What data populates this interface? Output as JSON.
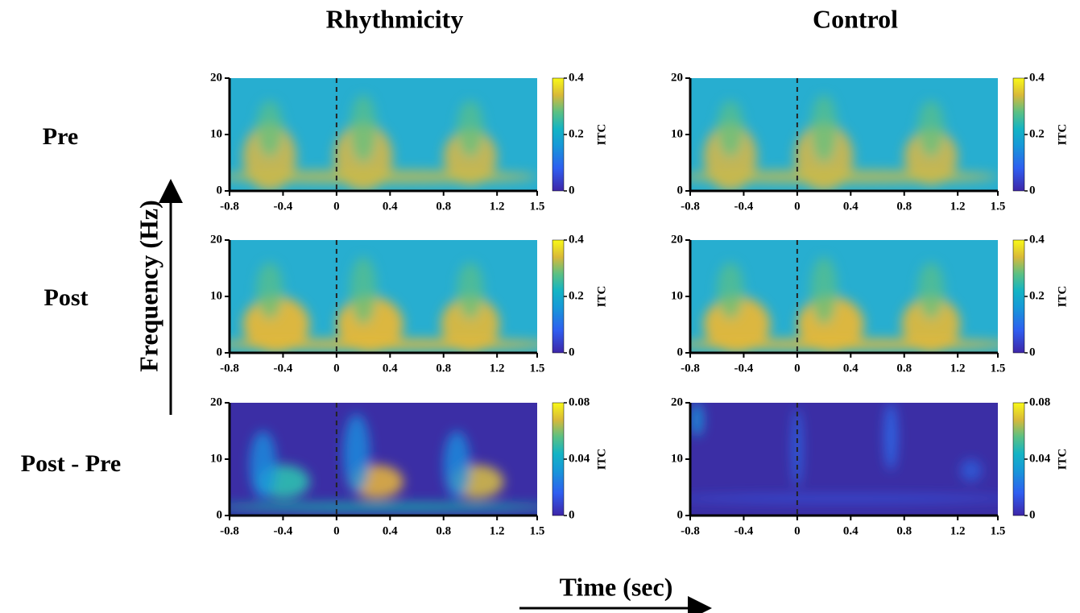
{
  "column_titles": [
    "Rhythmicity",
    "Control"
  ],
  "row_labels": [
    "Pre",
    "Post",
    "Post - Pre"
  ],
  "y_axis_label": "Frequency (Hz)",
  "x_axis_label": "Time (sec)",
  "chart_data": [
    {
      "type": "heatmap",
      "variant": "pre-rhythm",
      "xlim": [
        -0.8,
        1.5
      ],
      "xticks": [
        -0.8,
        -0.4,
        0,
        0.4,
        0.8,
        1.2,
        1.5
      ],
      "ylim": [
        0,
        20
      ],
      "yticks": [
        0,
        10,
        20
      ],
      "clim": [
        0,
        0.4
      ],
      "cticks": [
        0,
        0.2,
        0.4
      ],
      "colorbar_label": "ITC",
      "vline": 0
    },
    {
      "type": "heatmap",
      "variant": "pre-control",
      "xlim": [
        -0.8,
        1.5
      ],
      "xticks": [
        -0.8,
        -0.4,
        0,
        0.4,
        0.8,
        1.2,
        1.5
      ],
      "ylim": [
        0,
        20
      ],
      "yticks": [
        0,
        10,
        20
      ],
      "clim": [
        0,
        0.4
      ],
      "cticks": [
        0,
        0.2,
        0.4
      ],
      "colorbar_label": "ITC",
      "vline": 0
    },
    {
      "type": "heatmap",
      "variant": "post-rhythm",
      "xlim": [
        -0.8,
        1.5
      ],
      "xticks": [
        -0.8,
        -0.4,
        0,
        0.4,
        0.8,
        1.2,
        1.5
      ],
      "ylim": [
        0,
        20
      ],
      "yticks": [
        0,
        10,
        20
      ],
      "clim": [
        0,
        0.4
      ],
      "cticks": [
        0,
        0.2,
        0.4
      ],
      "colorbar_label": "ITC",
      "vline": 0
    },
    {
      "type": "heatmap",
      "variant": "post-control",
      "xlim": [
        -0.8,
        1.5
      ],
      "xticks": [
        -0.8,
        -0.4,
        0,
        0.4,
        0.8,
        1.2,
        1.5
      ],
      "ylim": [
        0,
        20
      ],
      "yticks": [
        0,
        10,
        20
      ],
      "clim": [
        0,
        0.4
      ],
      "cticks": [
        0,
        0.2,
        0.4
      ],
      "colorbar_label": "ITC",
      "vline": 0
    },
    {
      "type": "heatmap",
      "variant": "diff-rhythm",
      "xlim": [
        -0.8,
        1.5
      ],
      "xticks": [
        -0.8,
        -0.4,
        0,
        0.4,
        0.8,
        1.2,
        1.5
      ],
      "ylim": [
        0,
        20
      ],
      "yticks": [
        0,
        10,
        20
      ],
      "clim": [
        0,
        0.08
      ],
      "cticks": [
        0,
        0.04,
        0.08
      ],
      "colorbar_label": "ITC",
      "vline": 0
    },
    {
      "type": "heatmap",
      "variant": "diff-control",
      "xlim": [
        -0.8,
        1.5
      ],
      "xticks": [
        -0.8,
        -0.4,
        0,
        0.4,
        0.8,
        1.2,
        1.5
      ],
      "ylim": [
        0,
        20
      ],
      "yticks": [
        0,
        10,
        20
      ],
      "clim": [
        0,
        0.08
      ],
      "cticks": [
        0,
        0.04,
        0.08
      ],
      "colorbar_label": "ITC",
      "vline": 0
    }
  ]
}
